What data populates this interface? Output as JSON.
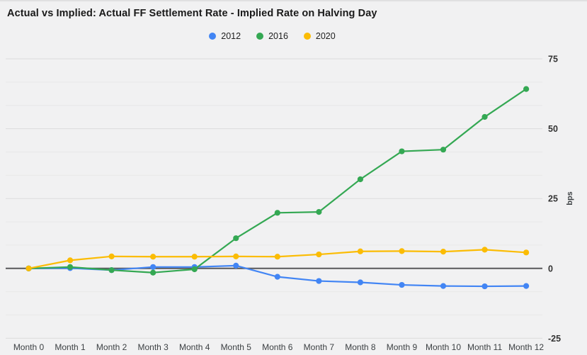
{
  "header": {
    "title": "Actual vs Implied: Actual FF Settlement Rate - Implied Rate on Halving Day"
  },
  "chart_data": {
    "type": "line",
    "title": "Actual vs Implied: Actual FF Settlement Rate - Implied Rate on Halving Day",
    "categories": [
      "Month 0",
      "Month 1",
      "Month 2",
      "Month 3",
      "Month 4",
      "Month 5",
      "Month 6",
      "Month 7",
      "Month 8",
      "Month 9",
      "Month 10",
      "Month 11",
      "Month 12"
    ],
    "series": [
      {
        "name": "2012",
        "color": "#4285F4",
        "values": [
          0,
          0.1,
          -0.6,
          0.5,
          0.5,
          1.0,
          -3.0,
          -4.5,
          -5.0,
          -5.9,
          -6.3,
          -6.4,
          -6.3
        ]
      },
      {
        "name": "2016",
        "color": "#34A853",
        "values": [
          0,
          0.5,
          -0.6,
          -1.5,
          -0.3,
          10.8,
          19.9,
          20.2,
          31.9,
          41.9,
          42.5,
          54.2,
          64.2
        ]
      },
      {
        "name": "2020",
        "color": "#FBBC04",
        "values": [
          0,
          2.9,
          4.3,
          4.2,
          4.2,
          4.3,
          4.2,
          5.0,
          6.1,
          6.2,
          6.0,
          6.7,
          5.7
        ]
      }
    ],
    "xlabel": "",
    "ylabel": "bps",
    "ylim": [
      -25,
      75
    ],
    "yticks": [
      75,
      50,
      25,
      0,
      -25
    ],
    "minor_gridline_divisions": 3,
    "legend_position": "top-center",
    "grid": true
  },
  "colors": {
    "background": "#f1f1f2",
    "grid_major": "#dcdcdc",
    "grid_minor": "#e8e8e8",
    "zero_line": "#58585a",
    "title_text": "#1a1a1a",
    "tick_text": "#333333",
    "axis_text": "#3c4043"
  }
}
